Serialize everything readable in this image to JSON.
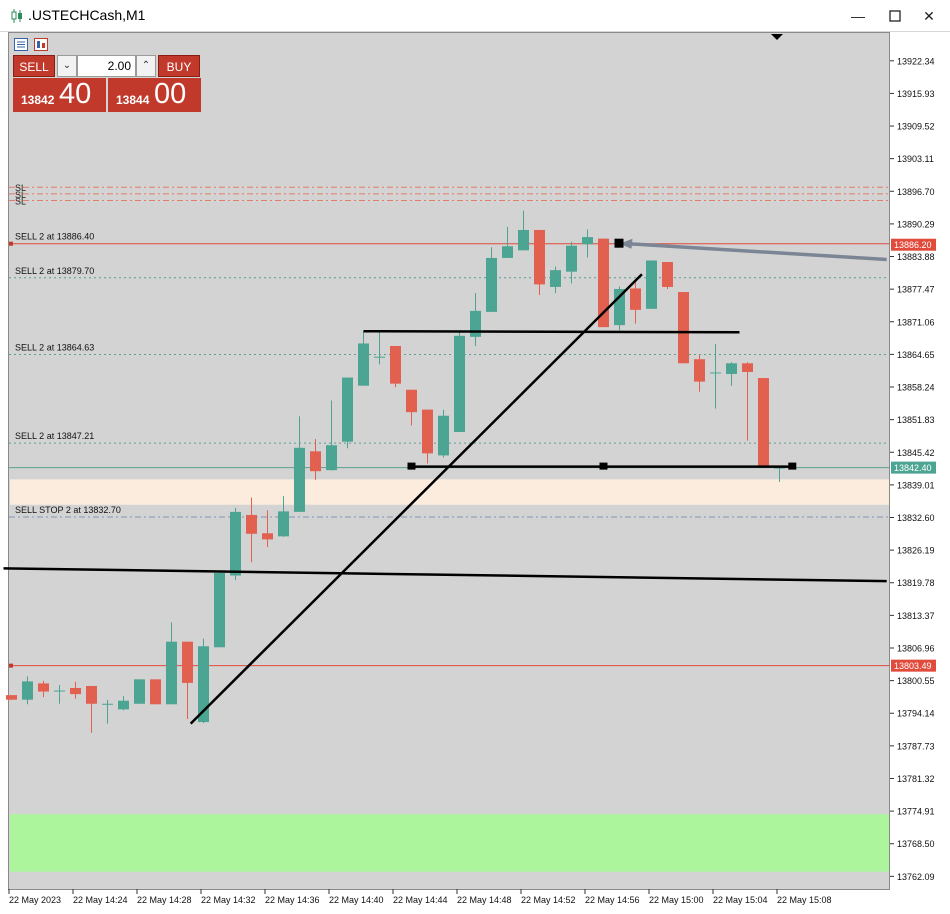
{
  "window": {
    "title": ".USTECHCash,M1",
    "minimize_icon": "minimize-icon",
    "maximize_icon": "maximize-icon",
    "close_icon": "close-icon"
  },
  "trade_panel": {
    "sell_label": "SELL",
    "buy_label": "BUY",
    "volume": "2.00",
    "bid_prefix": "13842",
    "bid_big": "40",
    "ask_prefix": "13844",
    "ask_big": "00",
    "icons": [
      "list-icon",
      "chart-window-icon"
    ]
  },
  "colors": {
    "background": "#d3d3d3",
    "bull": "#4ca593",
    "bear": "#e2604f",
    "line_red": "#e14b3b",
    "green_zone": "#adf59c",
    "orange_zone": "#fbecdd",
    "arrow": "#7b8595"
  },
  "price_axis": {
    "labels": [
      "13922.34",
      "13915.93",
      "13909.52",
      "13903.11",
      "13896.70",
      "13890.29",
      "13883.88",
      "13877.47",
      "13871.06",
      "13864.65",
      "13858.24",
      "13851.83",
      "13845.42",
      "13839.01",
      "13832.60",
      "13826.19",
      "13819.78",
      "13813.37",
      "13806.96",
      "13800.55",
      "13794.14",
      "13787.73",
      "13781.32",
      "13774.91",
      "13768.50",
      "13762.09"
    ],
    "tags": [
      {
        "price": 13886.2,
        "label": "13886.20",
        "color": "#e14b3b"
      },
      {
        "price": 13842.4,
        "label": "13842.40",
        "color": "#4ca593"
      },
      {
        "price": 13803.49,
        "label": "13803.49",
        "color": "#e14b3b"
      }
    ]
  },
  "time_axis": {
    "labels": [
      "22 May 2023",
      "22 May 14:24",
      "22 May 14:28",
      "22 May 14:32",
      "22 May 14:36",
      "22 May 14:40",
      "22 May 14:44",
      "22 May 14:48",
      "22 May 14:52",
      "22 May 14:56",
      "22 May 15:00",
      "22 May 15:04",
      "22 May 15:08"
    ]
  },
  "orders": [
    {
      "label": "SELL 2 at 13886.40",
      "price": 13886.4
    },
    {
      "label": "SELL 2 at 13879.70",
      "price": 13879.7
    },
    {
      "label": "SELL 2 at 13864.63",
      "price": 13864.63
    },
    {
      "label": "SELL 2 at 13847.21",
      "price": 13847.21
    },
    {
      "label": "SELL STOP 2 at 13832.70",
      "price": 13832.7
    }
  ],
  "sl_labels": [
    {
      "label": "SL",
      "price": 13897.5
    },
    {
      "label": "SL",
      "price": 13896.2
    },
    {
      "label": "SL",
      "price": 13894.9
    }
  ],
  "zones": [
    {
      "name": "orange-zone",
      "from": 13835.1,
      "to": 13840.1,
      "color": "#fbecdd"
    },
    {
      "name": "green-zone",
      "from": 13763.0,
      "to": 13774.3,
      "color": "#adf59c"
    }
  ],
  "chart_data": {
    "type": "candlestick",
    "title": ".USTECHCash,M1",
    "ylim": [
      13759.8,
      13927.8
    ],
    "x_labels": [
      "22 May 2023",
      "22 May 14:24",
      "22 May 14:28",
      "22 May 14:32",
      "22 May 14:36",
      "22 May 14:40",
      "22 May 14:44",
      "22 May 14:48",
      "22 May 14:52",
      "22 May 14:56",
      "22 May 15:00",
      "22 May 15:04",
      "22 May 15:08"
    ],
    "candles": [
      {
        "o": 13797.7,
        "h": 13797.7,
        "l": 13796.8,
        "c": 13796.8
      },
      {
        "o": 13796.8,
        "h": 13801.4,
        "l": 13795.9,
        "c": 13800.4
      },
      {
        "o": 13800.0,
        "h": 13800.5,
        "l": 13797.3,
        "c": 13798.4
      },
      {
        "o": 13798.6,
        "h": 13799.7,
        "l": 13796.0,
        "c": 13798.6
      },
      {
        "o": 13799.1,
        "h": 13800.3,
        "l": 13797.0,
        "c": 13797.9
      },
      {
        "o": 13799.5,
        "h": 13799.5,
        "l": 13790.3,
        "c": 13796.0
      },
      {
        "o": 13796.0,
        "h": 13796.8,
        "l": 13792.1,
        "c": 13796.0
      },
      {
        "o": 13794.9,
        "h": 13797.5,
        "l": 13794.7,
        "c": 13796.6
      },
      {
        "o": 13796.0,
        "h": 13800.8,
        "l": 13796.0,
        "c": 13800.8
      },
      {
        "o": 13800.8,
        "h": 13800.8,
        "l": 13795.9,
        "c": 13795.9
      },
      {
        "o": 13795.9,
        "h": 13812.0,
        "l": 13795.9,
        "c": 13808.2
      },
      {
        "o": 13808.2,
        "h": 13808.2,
        "l": 13793.0,
        "c": 13800.1
      },
      {
        "o": 13792.4,
        "h": 13808.8,
        "l": 13792.2,
        "c": 13807.3
      },
      {
        "o": 13807.1,
        "h": 13822.2,
        "l": 13807.1,
        "c": 13821.7
      },
      {
        "o": 13821.2,
        "h": 13834.5,
        "l": 13820.3,
        "c": 13833.7
      },
      {
        "o": 13833.1,
        "h": 13836.5,
        "l": 13823.8,
        "c": 13829.4
      },
      {
        "o": 13829.5,
        "h": 13834.0,
        "l": 13826.8,
        "c": 13828.3
      },
      {
        "o": 13828.9,
        "h": 13836.8,
        "l": 13828.8,
        "c": 13833.8
      },
      {
        "o": 13833.7,
        "h": 13852.5,
        "l": 13833.7,
        "c": 13846.3
      },
      {
        "o": 13845.6,
        "h": 13848.0,
        "l": 13840.0,
        "c": 13841.7
      },
      {
        "o": 13841.9,
        "h": 13855.6,
        "l": 13841.8,
        "c": 13846.8
      },
      {
        "o": 13847.5,
        "h": 13860.1,
        "l": 13846.2,
        "c": 13860.1
      },
      {
        "o": 13858.5,
        "h": 13869.2,
        "l": 13858.5,
        "c": 13866.8
      },
      {
        "o": 13864.2,
        "h": 13869.2,
        "l": 13862.7,
        "c": 13864.2
      },
      {
        "o": 13866.3,
        "h": 13866.3,
        "l": 13858.2,
        "c": 13858.9
      },
      {
        "o": 13857.7,
        "h": 13857.7,
        "l": 13850.7,
        "c": 13853.3
      },
      {
        "o": 13853.8,
        "h": 13853.8,
        "l": 13843.2,
        "c": 13845.2
      },
      {
        "o": 13844.8,
        "h": 13853.8,
        "l": 13844.4,
        "c": 13852.6
      },
      {
        "o": 13849.4,
        "h": 13869.1,
        "l": 13849.4,
        "c": 13868.3
      },
      {
        "o": 13868.1,
        "h": 13876.7,
        "l": 13866.3,
        "c": 13873.2
      },
      {
        "o": 13873.0,
        "h": 13885.7,
        "l": 13873.0,
        "c": 13883.6
      },
      {
        "o": 13883.6,
        "h": 13889.7,
        "l": 13883.6,
        "c": 13885.9
      },
      {
        "o": 13885.1,
        "h": 13892.9,
        "l": 13885.1,
        "c": 13889.1
      },
      {
        "o": 13889.1,
        "h": 13889.1,
        "l": 13876.3,
        "c": 13878.4
      },
      {
        "o": 13877.9,
        "h": 13881.9,
        "l": 13876.7,
        "c": 13881.2
      },
      {
        "o": 13880.9,
        "h": 13886.8,
        "l": 13878.6,
        "c": 13886.0
      },
      {
        "o": 13886.3,
        "h": 13889.2,
        "l": 13883.7,
        "c": 13887.7
      },
      {
        "o": 13887.4,
        "h": 13887.4,
        "l": 13870.0,
        "c": 13870.0
      },
      {
        "o": 13870.4,
        "h": 13878.0,
        "l": 13869.4,
        "c": 13877.5
      },
      {
        "o": 13877.6,
        "h": 13879.1,
        "l": 13870.7,
        "c": 13873.4
      },
      {
        "o": 13873.6,
        "h": 13883.1,
        "l": 13873.6,
        "c": 13883.1
      },
      {
        "o": 13882.8,
        "h": 13882.8,
        "l": 13877.5,
        "c": 13877.9
      },
      {
        "o": 13876.9,
        "h": 13876.9,
        "l": 13862.9,
        "c": 13862.9
      },
      {
        "o": 13863.7,
        "h": 13864.5,
        "l": 13857.3,
        "c": 13859.3
      },
      {
        "o": 13861.1,
        "h": 13866.7,
        "l": 13854.0,
        "c": 13861.1
      },
      {
        "o": 13860.8,
        "h": 13863.1,
        "l": 13858.5,
        "c": 13862.9
      },
      {
        "o": 13862.9,
        "h": 13863.1,
        "l": 13847.7,
        "c": 13861.2
      },
      {
        "o": 13860.0,
        "h": 13860.0,
        "l": 13842.4,
        "c": 13842.4
      },
      {
        "o": 13842.2,
        "h": 13842.6,
        "l": 13839.6,
        "c": 13842.4
      }
    ],
    "lines": [
      {
        "name": "rising-trendline",
        "p1": {
          "i": 11.2,
          "price": 13792.1
        },
        "p2": {
          "i": 39.4,
          "price": 13880.4
        }
      },
      {
        "name": "resistance-line",
        "p1": {
          "i": 22.0,
          "price": 13869.2
        },
        "p2": {
          "i": 45.5,
          "price": 13869.0
        }
      },
      {
        "name": "support-line",
        "p1": {
          "i": 25.0,
          "price": 13842.6
        },
        "p2": {
          "i": 48.8,
          "price": 13842.6
        }
      },
      {
        "name": "long-horizontal-line",
        "p1": {
          "i": -0.5,
          "price": 13822.6
        },
        "p2": {
          "i": 54.7,
          "price": 13820.1
        }
      }
    ],
    "arrow": {
      "from": {
        "i": 54.7,
        "price": 13883.3
      },
      "to": {
        "i": 38.0,
        "price": 13886.4
      }
    }
  }
}
